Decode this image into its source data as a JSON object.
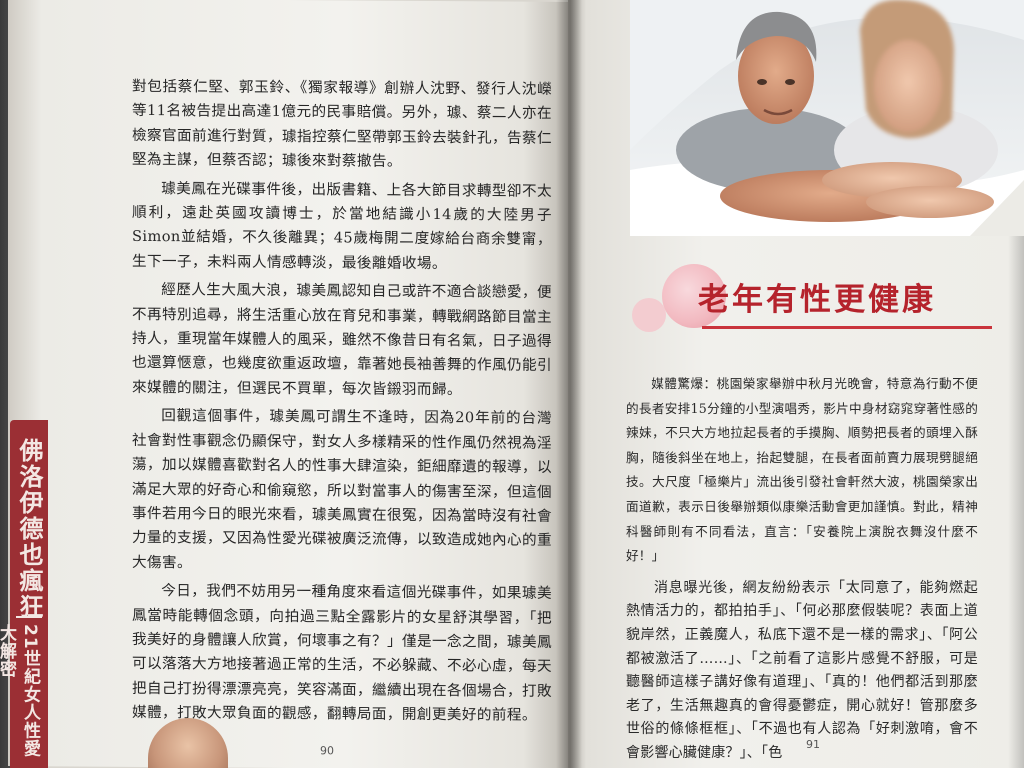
{
  "left_page": {
    "paragraphs": [
      "對包括蔡仁堅、郭玉鈴、《獨家報導》創辦人沈野、發行人沈嶸等11名被告提出高達1億元的民事賠償。另外，璩、蔡二人亦在檢察官面前進行對質，璩指控蔡仁堅帶郭玉鈴去裝針孔，告蔡仁堅為主謀，但蔡否認；璩後來對蔡撤告。",
      "璩美鳳在光碟事件後，出版書籍、上各大節目求轉型卻不太順利，遠赴英國攻讀博士，於當地結識小14歲的大陸男子Simon並結婚，不久後離異；45歲梅開二度嫁給台商余雙甯，生下一子，未料兩人情感轉淡，最後離婚收場。",
      "經歷人生大風大浪，璩美鳳認知自己或許不適合談戀愛，便不再特別追尋，將生活重心放在育兒和事業，轉戰網路節目當主持人，重現當年媒體人的風采，雖然不像昔日有名氣，日子過得也還算愜意，也幾度欲重返政壇，靠著她長袖善舞的作風仍能引來媒體的關注，但選民不買單，每次皆鎩羽而歸。",
      "回觀這個事件，璩美鳳可謂生不逢時，因為20年前的台灣社會對性事觀念仍顯保守，對女人多樣精采的性作風仍然視為淫蕩，加以媒體喜歡對名人的性事大肆渲染，鉅細靡遺的報導，以滿足大眾的好奇心和偷窺慾，所以對當事人的傷害至深，但這個事件若用今日的眼光來看，璩美鳳實在很冤，因為當時沒有社會力量的支援，又因為性愛光碟被廣泛流傳，以致造成她內心的重大傷害。",
      "今日，我們不妨用另一種角度來看這個光碟事件，如果璩美鳳當時能轉個念頭，向拍過三點全露影片的女星舒淇學習，「把我美好的身體讓人欣賞，何壞事之有？」僅是一念之間，璩美鳳可以落落大方地接著過正常的生活，不必躲藏、不必心虛，每天把自己打扮得漂漂亮亮，笑容滿面，繼續出現在各個場合，打敗媒體，打敗大眾負面的觀感，翻轉局面，開創更美好的前程。"
    ],
    "page_number": "90"
  },
  "spine": {
    "title": "佛洛伊德也瘋狂",
    "subtitle": "21世紀女人性愛大解密"
  },
  "right_page": {
    "heading": "老年有性更健康",
    "paragraphs": [
      "媒體驚爆：桃園榮家舉辦中秋月光晚會，特意為行動不便的長者安排15分鐘的小型演唱秀，影片中身材窈窕穿著性感的辣妹，不只大方地拉起長者的手摸胸、順勢把長者的頭埋入酥胸，隨後斜坐在地上，抬起雙腿，在長者面前賣力展現劈腿絕技。大尺度「極樂片」流出後引發社會軒然大波，桃園榮家出面道歉，表示日後舉辦類似康樂活動會更加謹慎。對此，精神科醫師則有不同看法，直言：「安養院上演脫衣舞沒什麼不好！」",
      "消息曝光後，網友紛紛表示「太同意了，能夠燃起熱情活力的，都拍拍手」、「何必那麼假裝呢？表面上道貌岸然，正義魔人，私底下還不是一樣的需求」、「阿公都被激活了……」、「之前看了這影片感覺不舒服，可是聽醫師這樣子講好像有道理」、「真的！他們都活到那麼老了，生活無趣真的會得憂鬱症，開心就好！管那麼多世俗的條條框框」、「不過也有人認為「好刺激唷，會不會影響心臟健康？」、「色"
    ],
    "page_number": "91"
  },
  "colors": {
    "heading_red": "#b5232c",
    "spine_red": "#9b2f34",
    "paper": "#f1f0ec"
  }
}
